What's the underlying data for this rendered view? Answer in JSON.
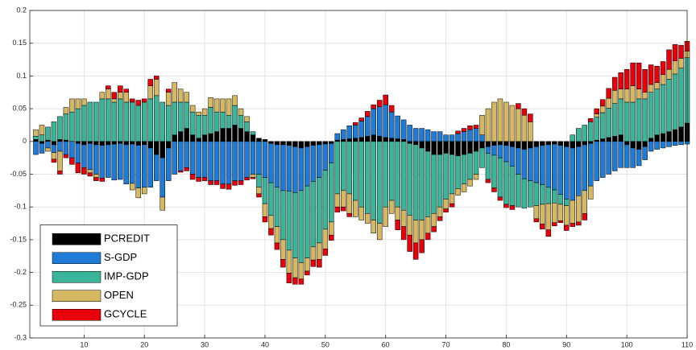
{
  "chart_data": {
    "type": "stacked-bar",
    "x": [
      2,
      3,
      4,
      5,
      6,
      7,
      8,
      9,
      10,
      11,
      12,
      13,
      14,
      15,
      16,
      17,
      18,
      19,
      20,
      21,
      22,
      23,
      24,
      25,
      26,
      27,
      28,
      29,
      30,
      31,
      32,
      33,
      34,
      35,
      36,
      37,
      38,
      39,
      40,
      41,
      42,
      43,
      44,
      45,
      46,
      47,
      48,
      49,
      50,
      51,
      52,
      53,
      54,
      55,
      56,
      57,
      58,
      59,
      60,
      61,
      62,
      63,
      64,
      65,
      66,
      67,
      68,
      69,
      70,
      71,
      72,
      73,
      74,
      75,
      76,
      77,
      78,
      79,
      80,
      81,
      82,
      83,
      84,
      85,
      86,
      87,
      88,
      89,
      90,
      91,
      92,
      93,
      94,
      95,
      96,
      97,
      98,
      99,
      100,
      101,
      102,
      103,
      104,
      105,
      106,
      107,
      108,
      109,
      110
    ],
    "series": [
      {
        "name": "PCREDIT",
        "color": "#000000",
        "values": [
          0.003,
          -0.003,
          0.002,
          -0.005,
          0.003,
          0.002,
          0,
          -0.003,
          -0.005,
          -0.003,
          -0.005,
          -0.006,
          -0.005,
          -0.004,
          -0.003,
          -0.005,
          -0.004,
          -0.006,
          -0.005,
          -0.01,
          -0.02,
          -0.025,
          -0.01,
          0.01,
          0.015,
          0.02,
          0.01,
          0.005,
          0.01,
          0.012,
          0.015,
          0.02,
          0.02,
          0.025,
          0.02,
          0.015,
          0.01,
          0.005,
          0.003,
          -0.003,
          -0.005,
          -0.005,
          -0.006,
          -0.008,
          -0.01,
          -0.008,
          -0.006,
          -0.005,
          -0.004,
          -0.003,
          0.002,
          0.003,
          0.004,
          0.005,
          0.006,
          0.008,
          0.01,
          0.008,
          0.006,
          0.005,
          0.004,
          0.003,
          -0.003,
          -0.005,
          -0.01,
          -0.015,
          -0.02,
          -0.02,
          -0.018,
          -0.02,
          -0.022,
          -0.02,
          -0.018,
          -0.015,
          -0.01,
          -0.008,
          -0.006,
          -0.005,
          -0.006,
          -0.008,
          -0.01,
          -0.012,
          -0.01,
          -0.008,
          -0.006,
          -0.005,
          -0.004,
          -0.006,
          -0.008,
          -0.01,
          -0.008,
          -0.005,
          -0.003,
          0.002,
          0.004,
          0.006,
          0.008,
          0.01,
          -0.005,
          -0.01,
          -0.012,
          -0.008,
          0.005,
          0.01,
          0.012,
          0.015,
          0.018,
          0.022,
          0.028
        ]
      },
      {
        "name": "S-GDP",
        "color": "#1f7bd6",
        "values": [
          -0.02,
          -0.015,
          -0.01,
          -0.012,
          -0.015,
          -0.02,
          -0.025,
          -0.03,
          -0.035,
          -0.04,
          -0.045,
          -0.05,
          -0.05,
          -0.055,
          -0.055,
          -0.06,
          -0.06,
          -0.065,
          -0.065,
          -0.06,
          -0.04,
          -0.06,
          -0.05,
          -0.05,
          -0.045,
          -0.04,
          -0.05,
          -0.055,
          -0.055,
          -0.06,
          -0.06,
          -0.065,
          -0.065,
          -0.06,
          -0.06,
          -0.055,
          -0.05,
          -0.05,
          -0.055,
          -0.06,
          -0.065,
          -0.07,
          -0.07,
          -0.07,
          -0.065,
          -0.06,
          -0.055,
          -0.05,
          -0.04,
          -0.03,
          0.01,
          0.015,
          0.02,
          0.02,
          0.025,
          0.03,
          0.04,
          0.045,
          0.05,
          0.04,
          0.035,
          0.03,
          0.025,
          0.02,
          0.02,
          0.018,
          0.015,
          0.015,
          0.01,
          0.01,
          0.012,
          0.015,
          0.018,
          0.02,
          0.01,
          -0.01,
          -0.015,
          -0.02,
          -0.025,
          -0.03,
          -0.04,
          -0.045,
          -0.05,
          -0.055,
          -0.06,
          -0.065,
          -0.07,
          -0.075,
          -0.08,
          -0.08,
          -0.075,
          -0.07,
          -0.065,
          -0.06,
          -0.055,
          -0.05,
          -0.045,
          -0.04,
          -0.035,
          -0.03,
          -0.025,
          -0.02,
          -0.015,
          -0.012,
          -0.01,
          -0.008,
          -0.006,
          -0.005,
          -0.004
        ]
      },
      {
        "name": "IMP-GDP",
        "color": "#3bb59a",
        "values": [
          0.005,
          0.01,
          0.02,
          0.03,
          0.035,
          0.04,
          0.045,
          0.05,
          0.055,
          0.06,
          0.06,
          0.065,
          0.065,
          0.06,
          0.065,
          0.06,
          0.06,
          0.055,
          0.06,
          0.065,
          0.07,
          0.06,
          0.055,
          0.05,
          0.045,
          0.04,
          0.035,
          0.035,
          0.03,
          0.04,
          0.03,
          0.025,
          0.02,
          0.03,
          0.02,
          0.015,
          0.005,
          -0.02,
          -0.04,
          -0.05,
          -0.06,
          -0.075,
          -0.09,
          -0.1,
          -0.11,
          -0.11,
          -0.1,
          -0.1,
          -0.09,
          -0.09,
          -0.08,
          -0.075,
          -0.08,
          -0.09,
          -0.1,
          -0.11,
          -0.12,
          -0.125,
          -0.1,
          -0.09,
          -0.1,
          -0.105,
          -0.11,
          -0.115,
          -0.11,
          -0.1,
          -0.09,
          -0.08,
          -0.07,
          -0.06,
          -0.05,
          -0.045,
          -0.04,
          -0.035,
          -0.03,
          -0.04,
          -0.05,
          -0.06,
          -0.065,
          -0.06,
          -0.05,
          -0.045,
          -0.04,
          -0.035,
          -0.03,
          -0.025,
          -0.02,
          -0.015,
          -0.01,
          0.01,
          0.02,
          0.025,
          0.03,
          0.035,
          0.04,
          0.045,
          0.05,
          0.055,
          0.06,
          0.06,
          0.065,
          0.065,
          0.07,
          0.07,
          0.075,
          0.08,
          0.085,
          0.09,
          0.1
        ]
      },
      {
        "name": "OPEN",
        "color": "#d7b862",
        "values": [
          0.01,
          0.015,
          -0.005,
          -0.01,
          -0.03,
          0.01,
          0.02,
          0.015,
          0.01,
          -0.005,
          -0.005,
          0.01,
          0.015,
          0.005,
          0.01,
          0.015,
          -0.01,
          -0.015,
          -0.01,
          0.02,
          0.025,
          -0.02,
          0.02,
          0.03,
          0.02,
          0.015,
          0.01,
          0.005,
          0.01,
          0.015,
          0.02,
          0.02,
          0.025,
          0.015,
          0.01,
          0.008,
          -0.005,
          -0.01,
          -0.02,
          -0.02,
          -0.025,
          -0.03,
          -0.035,
          -0.03,
          -0.025,
          -0.02,
          -0.02,
          -0.025,
          -0.03,
          -0.02,
          -0.02,
          -0.025,
          -0.03,
          -0.025,
          -0.02,
          -0.015,
          -0.02,
          -0.025,
          -0.03,
          -0.02,
          -0.02,
          -0.025,
          -0.03,
          -0.035,
          -0.03,
          -0.025,
          -0.02,
          -0.015,
          -0.015,
          -0.015,
          -0.01,
          -0.012,
          -0.01,
          -0.008,
          0.03,
          0.05,
          0.06,
          0.065,
          0.06,
          0.055,
          0.05,
          0.04,
          0.03,
          -0.02,
          -0.03,
          -0.04,
          -0.03,
          -0.025,
          -0.03,
          -0.035,
          -0.04,
          -0.035,
          -0.02,
          0.005,
          0.01,
          0.015,
          0.02,
          0.015,
          0.02,
          0.025,
          0.015,
          0.01,
          0.012,
          0.01,
          0.015,
          0.015,
          0.02,
          0.015,
          0.01
        ]
      },
      {
        "name": "GCYCLE",
        "color": "#e8000b",
        "values": [
          0,
          0,
          0,
          -0.005,
          -0.005,
          -0.005,
          -0.01,
          -0.015,
          -0.01,
          -0.005,
          -0.005,
          -0.005,
          0.005,
          0.01,
          0.01,
          0.005,
          0.005,
          0.008,
          0.005,
          0.01,
          0.005,
          0,
          0.005,
          0,
          -0.002,
          -0.005,
          -0.008,
          -0.006,
          -0.005,
          -0.006,
          -0.006,
          -0.007,
          -0.008,
          -0.007,
          -0.006,
          -0.004,
          -0.002,
          -0.005,
          -0.008,
          -0.01,
          -0.01,
          -0.012,
          -0.015,
          -0.01,
          -0.008,
          -0.006,
          -0.01,
          -0.012,
          -0.01,
          -0.008,
          -0.008,
          -0.006,
          -0.005,
          0.004,
          0.005,
          0.008,
          0.006,
          0.01,
          0.015,
          0.01,
          -0.015,
          -0.02,
          -0.025,
          -0.025,
          -0.02,
          -0.01,
          -0.008,
          -0.006,
          -0.005,
          -0.005,
          0.004,
          0.005,
          0.006,
          0.005,
          0,
          -0.005,
          -0.006,
          -0.005,
          -0.005,
          -0.006,
          0.008,
          0.01,
          0.012,
          -0.005,
          -0.008,
          -0.01,
          -0.005,
          -0.003,
          -0.008,
          -0.005,
          -0.005,
          -0.01,
          0.005,
          0.008,
          0.01,
          0.015,
          0.02,
          0.025,
          0.03,
          0.035,
          0.04,
          0.035,
          0.03,
          0.025,
          0.02,
          0.03,
          0.025,
          0.02,
          0.015
        ]
      }
    ],
    "xlim": [
      1,
      110
    ],
    "xticks": [
      10,
      20,
      30,
      40,
      50,
      60,
      70,
      80,
      90,
      100,
      110
    ],
    "ylim": [
      -0.3,
      0.2
    ],
    "yticks": [
      0.2,
      0.15,
      0.1,
      0.05,
      0,
      -0.05,
      -0.1,
      -0.15,
      -0.2,
      -0.25,
      -0.3
    ],
    "grid": true,
    "legend": "southwest"
  }
}
